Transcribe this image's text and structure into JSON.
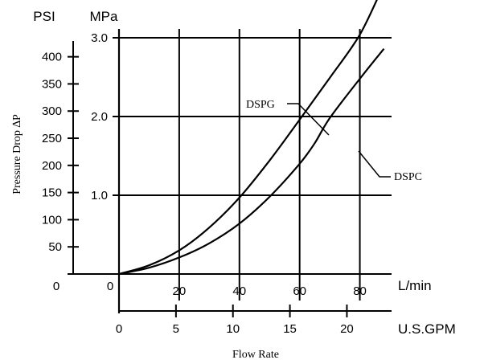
{
  "chart_data": {
    "type": "line",
    "title": "",
    "xlabel": "Flow Rate",
    "ylabel": "Pressure Drop ∆P",
    "unit_labels": {
      "psi": "PSI",
      "mpa": "MPa",
      "lmin": "L/min",
      "gpm": "U.S.GPM"
    },
    "x_lmin": {
      "lim": [
        0,
        90
      ],
      "ticks": [
        20,
        40,
        60,
        80
      ],
      "zero": "0"
    },
    "x_gpm": {
      "lim": [
        0,
        23.78
      ],
      "ticks": [
        0,
        5,
        10,
        15,
        20
      ]
    },
    "y_mpa": {
      "lim": [
        0,
        3.0
      ],
      "ticks": [
        1.0,
        2.0,
        3.0
      ],
      "zero": "0",
      "grid": true
    },
    "y_psi": {
      "lim": [
        0,
        435
      ],
      "ticks": [
        50,
        100,
        150,
        200,
        250,
        300,
        350,
        400
      ],
      "zero": "0"
    },
    "x_grid": [
      20,
      40,
      60,
      80
    ],
    "series": [
      {
        "name": "DSPG",
        "x": [
          0,
          10,
          20,
          30,
          40,
          50,
          60,
          70,
          80,
          88
        ],
        "y": [
          0,
          0.11,
          0.3,
          0.59,
          0.97,
          1.44,
          1.96,
          2.49,
          3.04,
          3.68
        ]
      },
      {
        "name": "DSPC",
        "x": [
          0,
          10,
          20,
          30,
          40,
          50,
          60,
          65,
          70,
          80,
          88
        ],
        "y": [
          0,
          0.08,
          0.21,
          0.39,
          0.64,
          0.98,
          1.4,
          1.66,
          1.98,
          2.48,
          2.86
        ]
      }
    ]
  }
}
